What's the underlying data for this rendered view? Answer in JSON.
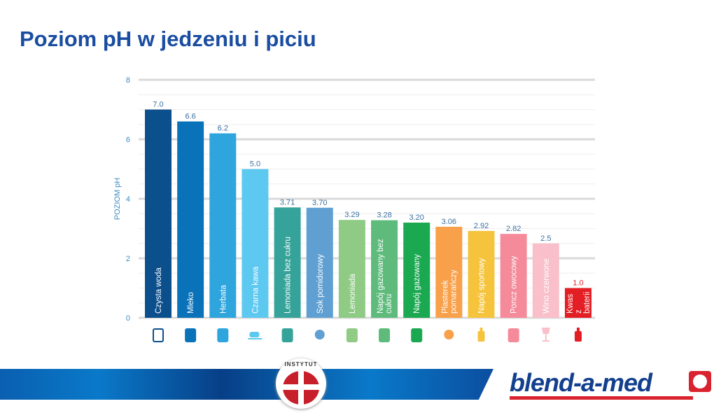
{
  "title": "Poziom pH w jedzeniu i piciu",
  "chart_data": {
    "type": "bar",
    "ylabel": "POZIOM pH",
    "ylim": [
      0,
      8
    ],
    "yticks": [
      0,
      2,
      4,
      6,
      8
    ],
    "grid": true,
    "categories": [
      "Czysta woda",
      "Mleko",
      "Herbata",
      "Czarna kawa",
      "Lemoniada bez cukru",
      "Sok pomidorowy",
      "Lemoniada",
      "Napój gazowany bez cukru",
      "Napój gazowany",
      "Plasterek pomarańczy",
      "Napój sportowy",
      "Poncz owocowy",
      "Wino czerwone",
      "Kwas z baterii"
    ],
    "values": [
      7.0,
      6.6,
      6.2,
      5.0,
      3.71,
      3.7,
      3.29,
      3.28,
      3.2,
      3.06,
      2.92,
      2.82,
      2.5,
      1.0
    ],
    "value_labels": [
      "7.0",
      "6.6",
      "6.2",
      "5.0",
      "3.71",
      "3.70",
      "3.29",
      "3.28",
      "3.20",
      "3.06",
      "2.92",
      "2.82",
      "2.5",
      "1.0"
    ],
    "colors": [
      "#0b4f8c",
      "#0a72b8",
      "#2ea5dd",
      "#5dc8f0",
      "#36a39a",
      "#5f9fd2",
      "#8fcb85",
      "#5fbb7c",
      "#1aa851",
      "#f8a04a",
      "#f5c43c",
      "#f48a9a",
      "#f9c0cb",
      "#e31e24"
    ],
    "icons": [
      "water-glass-icon",
      "milk-carton-icon",
      "tea-bag-icon",
      "coffee-cup-icon",
      "can-icon",
      "tomato-icon",
      "can-icon",
      "can-icon",
      "can-icon",
      "orange-slice-icon",
      "sport-bottle-icon",
      "punch-glass-icon",
      "wine-glass-icon",
      "battery-acid-bottle-icon"
    ]
  },
  "footer": {
    "seal_text": "INSTYTUT",
    "brand": "blend-a-med"
  }
}
